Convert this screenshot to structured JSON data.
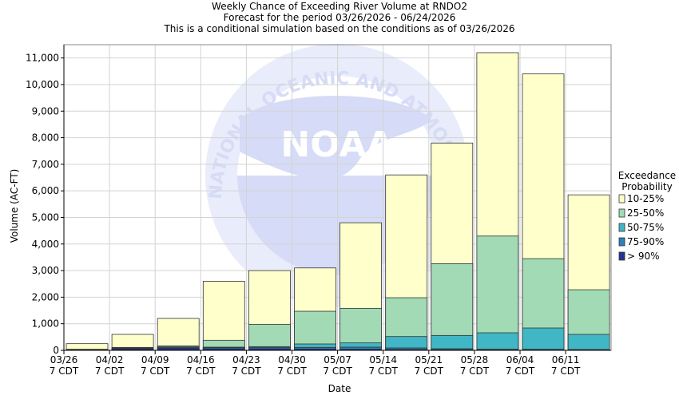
{
  "chart_data": {
    "type": "bar",
    "title": [
      "Weekly Chance of Exceeding River Volume at RNDO2",
      "Forecast for the period 03/26/2026 - 06/24/2026",
      "This is a conditional simulation based on the conditions as of 03/26/2026"
    ],
    "xlabel": "Date",
    "ylabel": "Volume (AC-FT)",
    "ylim": [
      0,
      11500
    ],
    "yticks": [
      0,
      1000,
      2000,
      3000,
      4000,
      5000,
      6000,
      7000,
      8000,
      9000,
      10000,
      11000
    ],
    "ytick_labels": [
      "0",
      "1,000",
      "2,000",
      "3,000",
      "4,000",
      "5,000",
      "6,000",
      "7,000",
      "8,000",
      "9,000",
      "10,000",
      "11,000"
    ],
    "categories": [
      "03/26",
      "04/02",
      "04/09",
      "04/16",
      "04/23",
      "04/30",
      "05/07",
      "05/14",
      "05/21",
      "05/28",
      "06/04",
      "06/11"
    ],
    "category_sublabel": "7 CDT",
    "grid": true,
    "legend": {
      "position": "right",
      "title": [
        "Exceedance",
        "Probability"
      ],
      "entries": [
        "10-25%",
        "25-50%",
        "50-75%",
        "75-90%",
        "> 90%"
      ],
      "colors": [
        "#ffffcc",
        "#a1dab4",
        "#41b6c4",
        "#2c7fb8",
        "#253494"
      ]
    },
    "series": [
      {
        "name": "10-25%",
        "color": "#ffffcc",
        "values": [
          250,
          600,
          1200,
          2600,
          3000,
          3100,
          4800,
          6600,
          7800,
          11200,
          10400,
          5850
        ]
      },
      {
        "name": "25-50%",
        "color": "#a1dab4",
        "values": [
          40,
          110,
          170,
          380,
          980,
          1470,
          1580,
          1980,
          3260,
          4300,
          3450,
          2280
        ]
      },
      {
        "name": "50-75%",
        "color": "#41b6c4",
        "values": [
          20,
          90,
          130,
          120,
          140,
          240,
          280,
          520,
          560,
          660,
          840,
          600
        ]
      },
      {
        "name": "75-90%",
        "color": "#2c7fb8",
        "values": [
          10,
          70,
          110,
          100,
          110,
          110,
          120,
          90,
          60,
          40,
          40,
          30
        ]
      },
      {
        "name": "> 90%",
        "color": "#253494",
        "values": [
          5,
          50,
          80,
          60,
          60,
          50,
          40,
          30,
          20,
          15,
          10,
          10
        ]
      }
    ]
  },
  "watermark": {
    "arc_text": "NATIONAL OCEANIC AND ATMOSPHERIC ADMINISTRATION",
    "logo_text": "NOAA"
  }
}
